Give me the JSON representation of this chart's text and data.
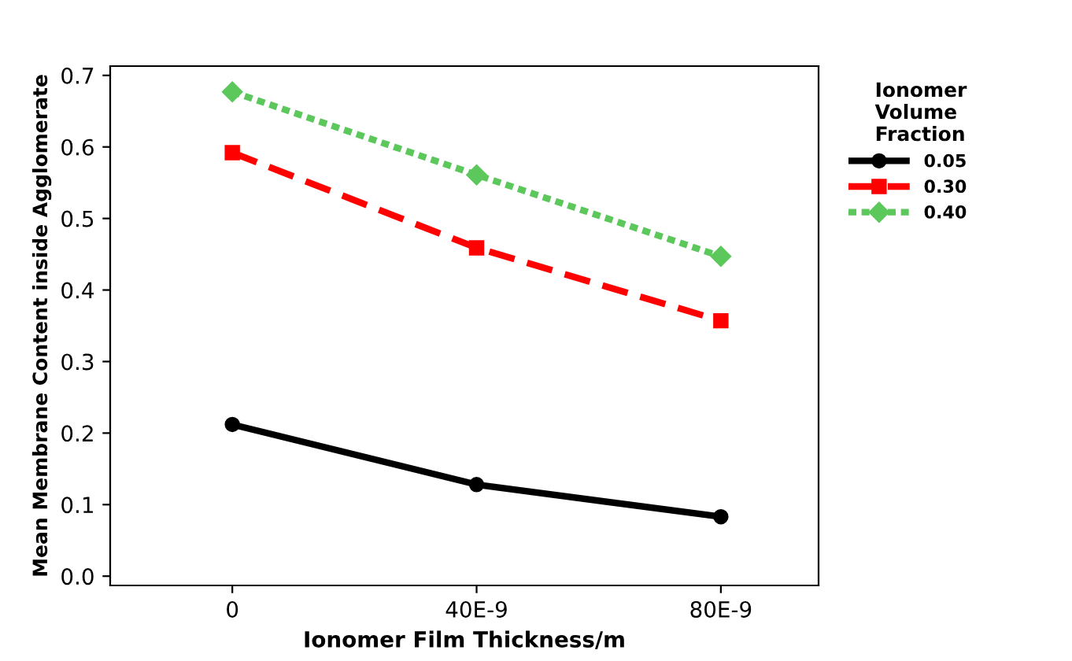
{
  "chart_data": {
    "type": "line",
    "xlabel": "Ionomer Film Thickness/m",
    "ylabel": "Mean Membrane Content inside Agglomerate",
    "categories": [
      "0",
      "40E-9",
      "80E-9"
    ],
    "series": [
      {
        "name": "0.05",
        "color": "#000000",
        "values": [
          0.212,
          0.128,
          0.083
        ],
        "marker": "circle",
        "line_style": "solid"
      },
      {
        "name": "0.30",
        "color": "#ff0000",
        "values": [
          0.592,
          0.459,
          0.357
        ],
        "marker": "square",
        "line_style": "dashed"
      },
      {
        "name": "0.40",
        "color": "#5cc85c",
        "values": [
          0.677,
          0.561,
          0.447
        ],
        "marker": "diamond",
        "line_style": "dotted"
      }
    ],
    "legend_title": "Ionomer\nVolume\nFraction",
    "legend": "right",
    "ylim": [
      -0.013,
      0.713
    ],
    "yticks": [
      {
        "value": 0,
        "label": "0.0"
      },
      0.1,
      0.2,
      0.3,
      0.4,
      0.5,
      0.6,
      0.7
    ],
    "grid": false
  }
}
